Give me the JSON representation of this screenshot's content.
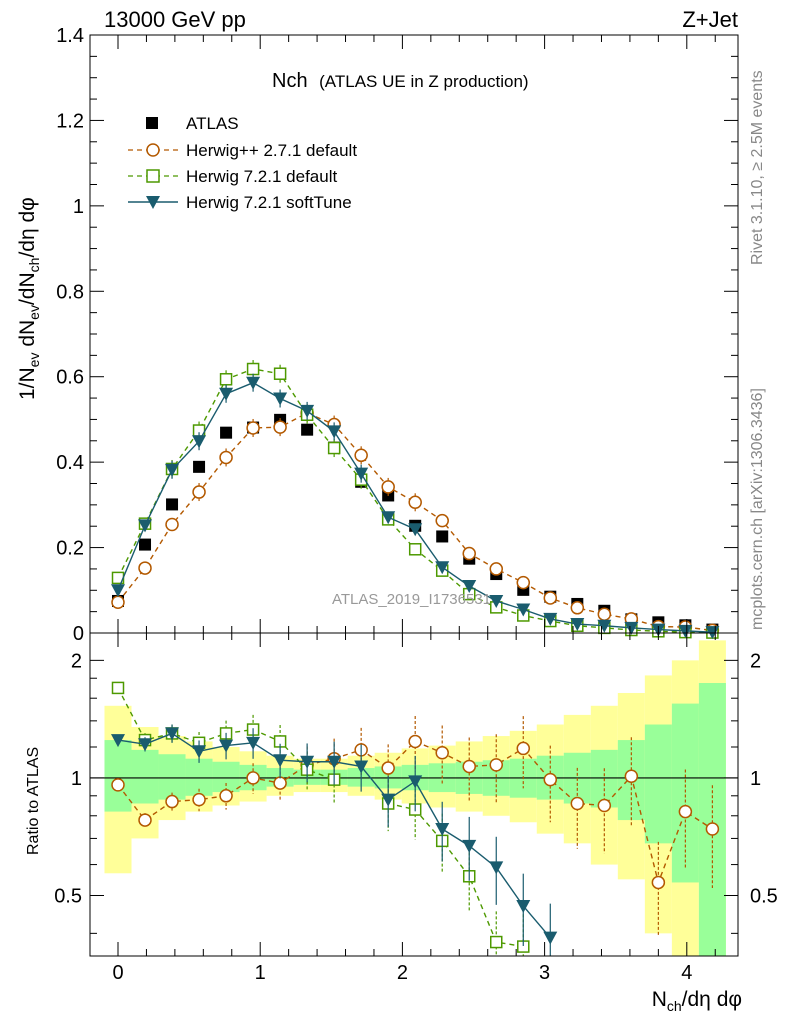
{
  "header": {
    "left": "13000 GeV pp",
    "right": "Z+Jet"
  },
  "side_labels": {
    "rivet": "Rivet 3.1.10, ≥ 2.5M events",
    "mcplots": "mcplots.cern.ch [arXiv:1306.3436]"
  },
  "watermark": "ATLAS_2019_I1736531",
  "ratio_ylabel": "Ratio to ATLAS",
  "chart_data": {
    "type": "scatter",
    "title": "Nch",
    "subtitle": "(ATLAS UE in Z production)",
    "xlabel": "Nch/dη dφ",
    "ylabel": "1/Nev dNev/dNch/dη dφ",
    "xlim": [
      -0.2,
      4.35
    ],
    "ylim": [
      0,
      1.4
    ],
    "ratio_ylim": [
      0.35,
      2.35
    ],
    "x_ticks": [
      "0",
      "1",
      "2",
      "3",
      "4"
    ],
    "y_ticks": [
      "0",
      "0.2",
      "0.4",
      "0.6",
      "0.8",
      "1",
      "1.2",
      "1.4"
    ],
    "ratio_ticks": [
      "0.5",
      "1",
      "2"
    ],
    "legend": [
      "ATLAS",
      "Herwig++ 2.7.1 default",
      "Herwig 7.2.1 default",
      "Herwig 7.2.1 softTune"
    ],
    "x": [
      0.0,
      0.19,
      0.38,
      0.57,
      0.76,
      0.95,
      1.14,
      1.33,
      1.52,
      1.71,
      1.9,
      2.09,
      2.28,
      2.47,
      2.66,
      2.85,
      3.04,
      3.23,
      3.42,
      3.61,
      3.8,
      3.99,
      4.18
    ],
    "series": [
      {
        "name": "ATLAS",
        "color": "#000000",
        "values": [
          0.075,
          0.207,
          0.301,
          0.389,
          0.469,
          0.481,
          0.499,
          0.476,
          0.434,
          0.354,
          0.322,
          0.251,
          0.226,
          0.174,
          0.138,
          0.101,
          0.085,
          0.068,
          0.052,
          0.032,
          0.025,
          0.018,
          0.008
        ],
        "ratio": []
      },
      {
        "name": "Herwig++ 2.7.1 default",
        "color": "#b35900",
        "values": [
          0.072,
          0.152,
          0.254,
          0.33,
          0.411,
          0.48,
          0.482,
          0.515,
          0.488,
          0.416,
          0.342,
          0.306,
          0.263,
          0.186,
          0.15,
          0.118,
          0.082,
          0.059,
          0.044,
          0.033,
          0.015,
          0.014,
          0.006
        ],
        "ratio": [
          0.96,
          0.78,
          0.87,
          0.88,
          0.9,
          1.0,
          0.97,
          1.08,
          1.12,
          1.18,
          1.06,
          1.24,
          1.16,
          1.07,
          1.08,
          1.19,
          0.99,
          0.86,
          0.85,
          1.01,
          0.54,
          0.82,
          0.74
        ]
      },
      {
        "name": "Herwig 7.2.1 default",
        "color": "#4d9900",
        "values": [
          0.129,
          0.256,
          0.384,
          0.474,
          0.594,
          0.618,
          0.607,
          0.511,
          0.433,
          0.359,
          0.266,
          0.196,
          0.146,
          0.091,
          0.06,
          0.041,
          0.028,
          0.017,
          0.012,
          0.007,
          0.004,
          0.002,
          0.001
        ],
        "ratio": [
          1.7,
          1.25,
          1.3,
          1.23,
          1.3,
          1.33,
          1.24,
          1.05,
          0.99,
          null,
          0.86,
          0.83,
          0.69,
          0.56,
          0.38,
          0.37,
          null,
          null,
          null,
          null,
          null,
          null,
          null
        ]
      },
      {
        "name": "Herwig 7.2.1 softTune",
        "color": "#1a5c6e",
        "values": [
          0.1,
          0.252,
          0.382,
          0.449,
          0.56,
          0.586,
          0.549,
          0.52,
          0.472,
          0.373,
          0.271,
          0.243,
          0.154,
          0.11,
          0.075,
          0.055,
          0.033,
          0.021,
          0.017,
          0.012,
          0.008,
          0.005,
          0.002
        ],
        "ratio": [
          1.25,
          1.22,
          1.3,
          1.17,
          1.21,
          1.23,
          1.11,
          1.1,
          1.1,
          1.07,
          0.88,
          0.98,
          0.74,
          0.67,
          0.59,
          0.47,
          0.39,
          null,
          null,
          null,
          null,
          null,
          null
        ]
      }
    ],
    "band_inner": [
      [
        0.82,
        1.25
      ],
      [
        0.86,
        1.18
      ],
      [
        0.88,
        1.15
      ],
      [
        0.9,
        1.12
      ],
      [
        0.92,
        1.1
      ],
      [
        0.93,
        1.08
      ],
      [
        0.95,
        1.06
      ],
      [
        0.96,
        1.05
      ],
      [
        0.96,
        1.05
      ],
      [
        0.95,
        1.06
      ],
      [
        0.94,
        1.07
      ],
      [
        0.93,
        1.08
      ],
      [
        0.92,
        1.09
      ],
      [
        0.91,
        1.1
      ],
      [
        0.9,
        1.11
      ],
      [
        0.89,
        1.12
      ],
      [
        0.88,
        1.14
      ],
      [
        0.86,
        1.16
      ],
      [
        0.84,
        1.18
      ],
      [
        0.78,
        1.25
      ],
      [
        0.68,
        1.37
      ],
      [
        0.54,
        1.55
      ],
      [
        0.35,
        1.75
      ]
    ],
    "band_outer": [
      [
        0.57,
        1.53
      ],
      [
        0.7,
        1.35
      ],
      [
        0.78,
        1.28
      ],
      [
        0.82,
        1.24
      ],
      [
        0.85,
        1.2
      ],
      [
        0.87,
        1.17
      ],
      [
        0.9,
        1.14
      ],
      [
        0.92,
        1.12
      ],
      [
        0.92,
        1.12
      ],
      [
        0.9,
        1.14
      ],
      [
        0.88,
        1.16
      ],
      [
        0.86,
        1.19
      ],
      [
        0.84,
        1.21
      ],
      [
        0.82,
        1.24
      ],
      [
        0.8,
        1.28
      ],
      [
        0.77,
        1.32
      ],
      [
        0.72,
        1.37
      ],
      [
        0.68,
        1.45
      ],
      [
        0.6,
        1.53
      ],
      [
        0.55,
        1.65
      ],
      [
        0.4,
        1.83
      ],
      [
        0.35,
        2.0
      ],
      [
        0.35,
        2.25
      ]
    ]
  }
}
